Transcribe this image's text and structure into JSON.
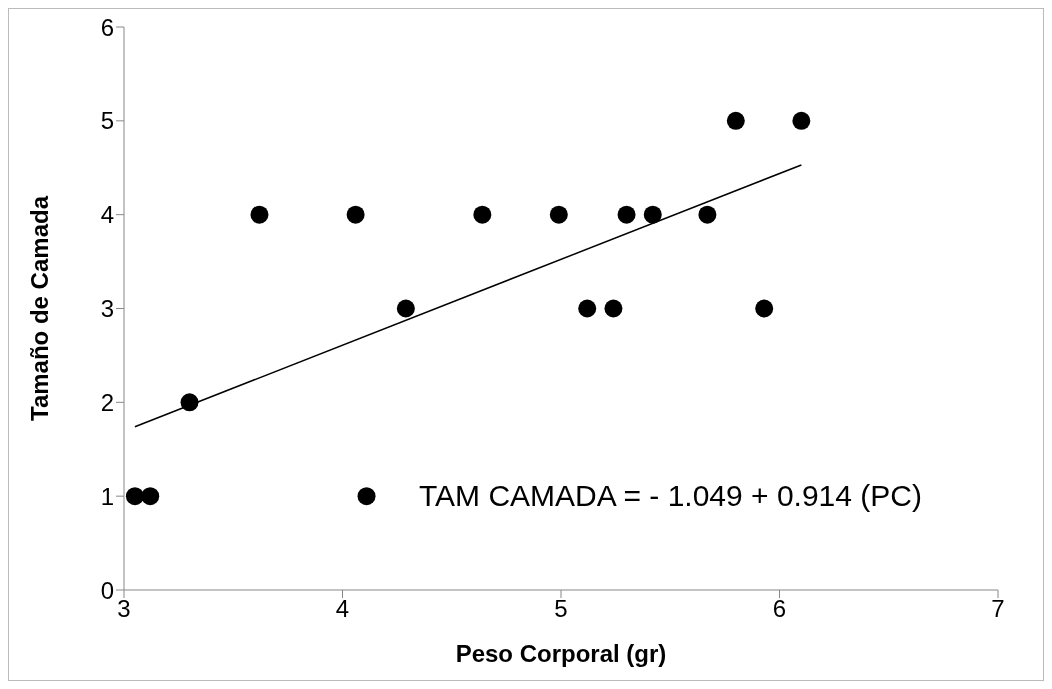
{
  "chart_data": {
    "type": "scatter",
    "xlabel": "Peso Corporal (gr)",
    "ylabel": "Tamaño de Camada",
    "xlim": [
      3,
      7
    ],
    "xticks": [
      3,
      4,
      5,
      6,
      7
    ],
    "ylim": [
      0,
      6
    ],
    "yticks": [
      0,
      1,
      2,
      3,
      4,
      5,
      6
    ],
    "grid": false,
    "legend": false,
    "marker": "circle",
    "series": [
      {
        "color": "#000000",
        "x": [
          3.05,
          3.12,
          3.3,
          3.62,
          4.11,
          4.06,
          4.29,
          4.64,
          4.99,
          5.12,
          5.24,
          5.3,
          5.42,
          5.67,
          5.8,
          5.93,
          6.1
        ],
        "values": [
          1,
          1,
          2,
          4,
          1,
          4,
          3,
          4,
          4,
          3,
          3,
          4,
          4,
          4,
          5,
          3,
          5
        ]
      },
      {
        "type": "line",
        "color": "#000000",
        "marker": "none",
        "x": [
          3.05,
          6.1
        ],
        "values": [
          1.74,
          4.53
        ]
      }
    ],
    "annotations": [
      "TAM CAMADA = - 1.049 + 0.914 (PC)"
    ]
  }
}
